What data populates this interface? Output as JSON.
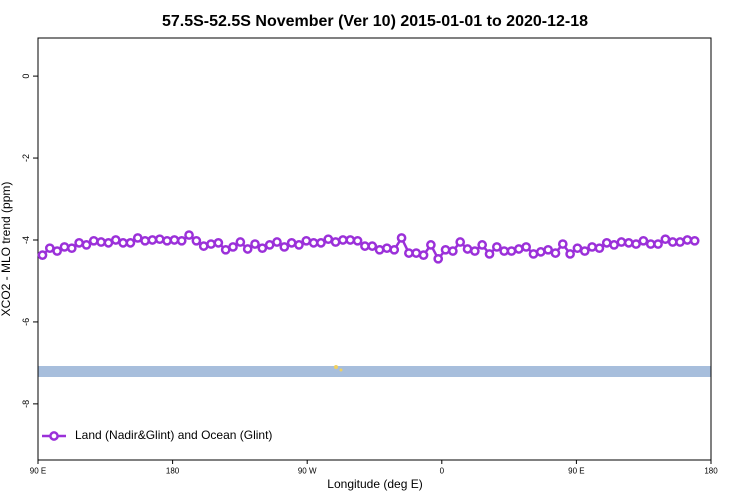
{
  "chart_data": {
    "type": "line",
    "title": "57.5S-52.5S November (Ver 10)   2015-01-01 to 2020-12-18",
    "x_label": "Longitude (deg E)",
    "y_label": "XCO2 - MLO trend (ppm)",
    "x": [
      93,
      97.9,
      102.8,
      107.7,
      112.6,
      117.5,
      122.4,
      127.3,
      132.2,
      137.1,
      142,
      146.9,
      151.8,
      156.7,
      161.6,
      166.5,
      171.4,
      176.3,
      181.2,
      186.1,
      191,
      195.9,
      200.8,
      205.7,
      210.6,
      215.5,
      220.4,
      225.3,
      230.2,
      235.1,
      240,
      244.9,
      249.8,
      254.7,
      259.6,
      264.5,
      269.4,
      274.3,
      279.2,
      284.1,
      289,
      293.9,
      298.8,
      303.7,
      308.6,
      313.5,
      318.4,
      323.3,
      328.2,
      333.1,
      338,
      342.9,
      347.8,
      352.7,
      357.6,
      362.5,
      367.4,
      372.3,
      377.2,
      382.1,
      387,
      391.9,
      396.8,
      401.7,
      406.6,
      411.5,
      416.4,
      421.3,
      426.2,
      431.1,
      436,
      440.9,
      445.8,
      450.7,
      455.6,
      460.5,
      465.4,
      470.3,
      475.2,
      480.1,
      485,
      489.9,
      494.8,
      499.7,
      504.6,
      509.5,
      514.4,
      519.3,
      524.2,
      529.1
    ],
    "series": [
      {
        "name": "Land (Nadir&Glint) and Ocean (Glint)",
        "color": "#9b30d9",
        "values": [
          -4.37,
          -4.2,
          -4.27,
          -4.17,
          -4.2,
          -4.07,
          -4.12,
          -4.02,
          -4.05,
          -4.07,
          -4.0,
          -4.07,
          -4.07,
          -3.95,
          -4.02,
          -4.0,
          -3.98,
          -4.02,
          -4.0,
          -4.02,
          -3.88,
          -4.02,
          -4.15,
          -4.1,
          -4.07,
          -4.24,
          -4.17,
          -4.05,
          -4.22,
          -4.1,
          -4.2,
          -4.12,
          -4.05,
          -4.17,
          -4.07,
          -4.12,
          -4.02,
          -4.07,
          -4.07,
          -3.98,
          -4.05,
          -4.0,
          -4.0,
          -4.02,
          -4.15,
          -4.15,
          -4.24,
          -4.2,
          -4.24,
          -3.95,
          -4.32,
          -4.32,
          -4.37,
          -4.12,
          -4.46,
          -4.24,
          -4.27,
          -4.05,
          -4.22,
          -4.27,
          -4.12,
          -4.34,
          -4.17,
          -4.27,
          -4.27,
          -4.22,
          -4.17,
          -4.34,
          -4.29,
          -4.24,
          -4.32,
          -4.1,
          -4.34,
          -4.2,
          -4.27,
          -4.17,
          -4.2,
          -4.07,
          -4.12,
          -4.05,
          -4.07,
          -4.1,
          -4.02,
          -4.1,
          -4.1,
          -3.98,
          -4.05,
          -4.05,
          -4.0,
          -4.02
        ]
      }
    ],
    "xlim": [
      90,
      540
    ],
    "xticks": [
      {
        "value": 90,
        "label": "90 E"
      },
      {
        "value": 180,
        "label": "180"
      },
      {
        "value": 270,
        "label": "90 W"
      },
      {
        "value": 360,
        "label": "0"
      },
      {
        "value": 450,
        "label": "90 E"
      },
      {
        "value": 540,
        "label": "180"
      }
    ],
    "ylim": [
      -9.37,
      0.93
    ],
    "yticks": [
      0,
      -2,
      -4,
      -6,
      -8
    ],
    "legend": "bottom-left"
  }
}
